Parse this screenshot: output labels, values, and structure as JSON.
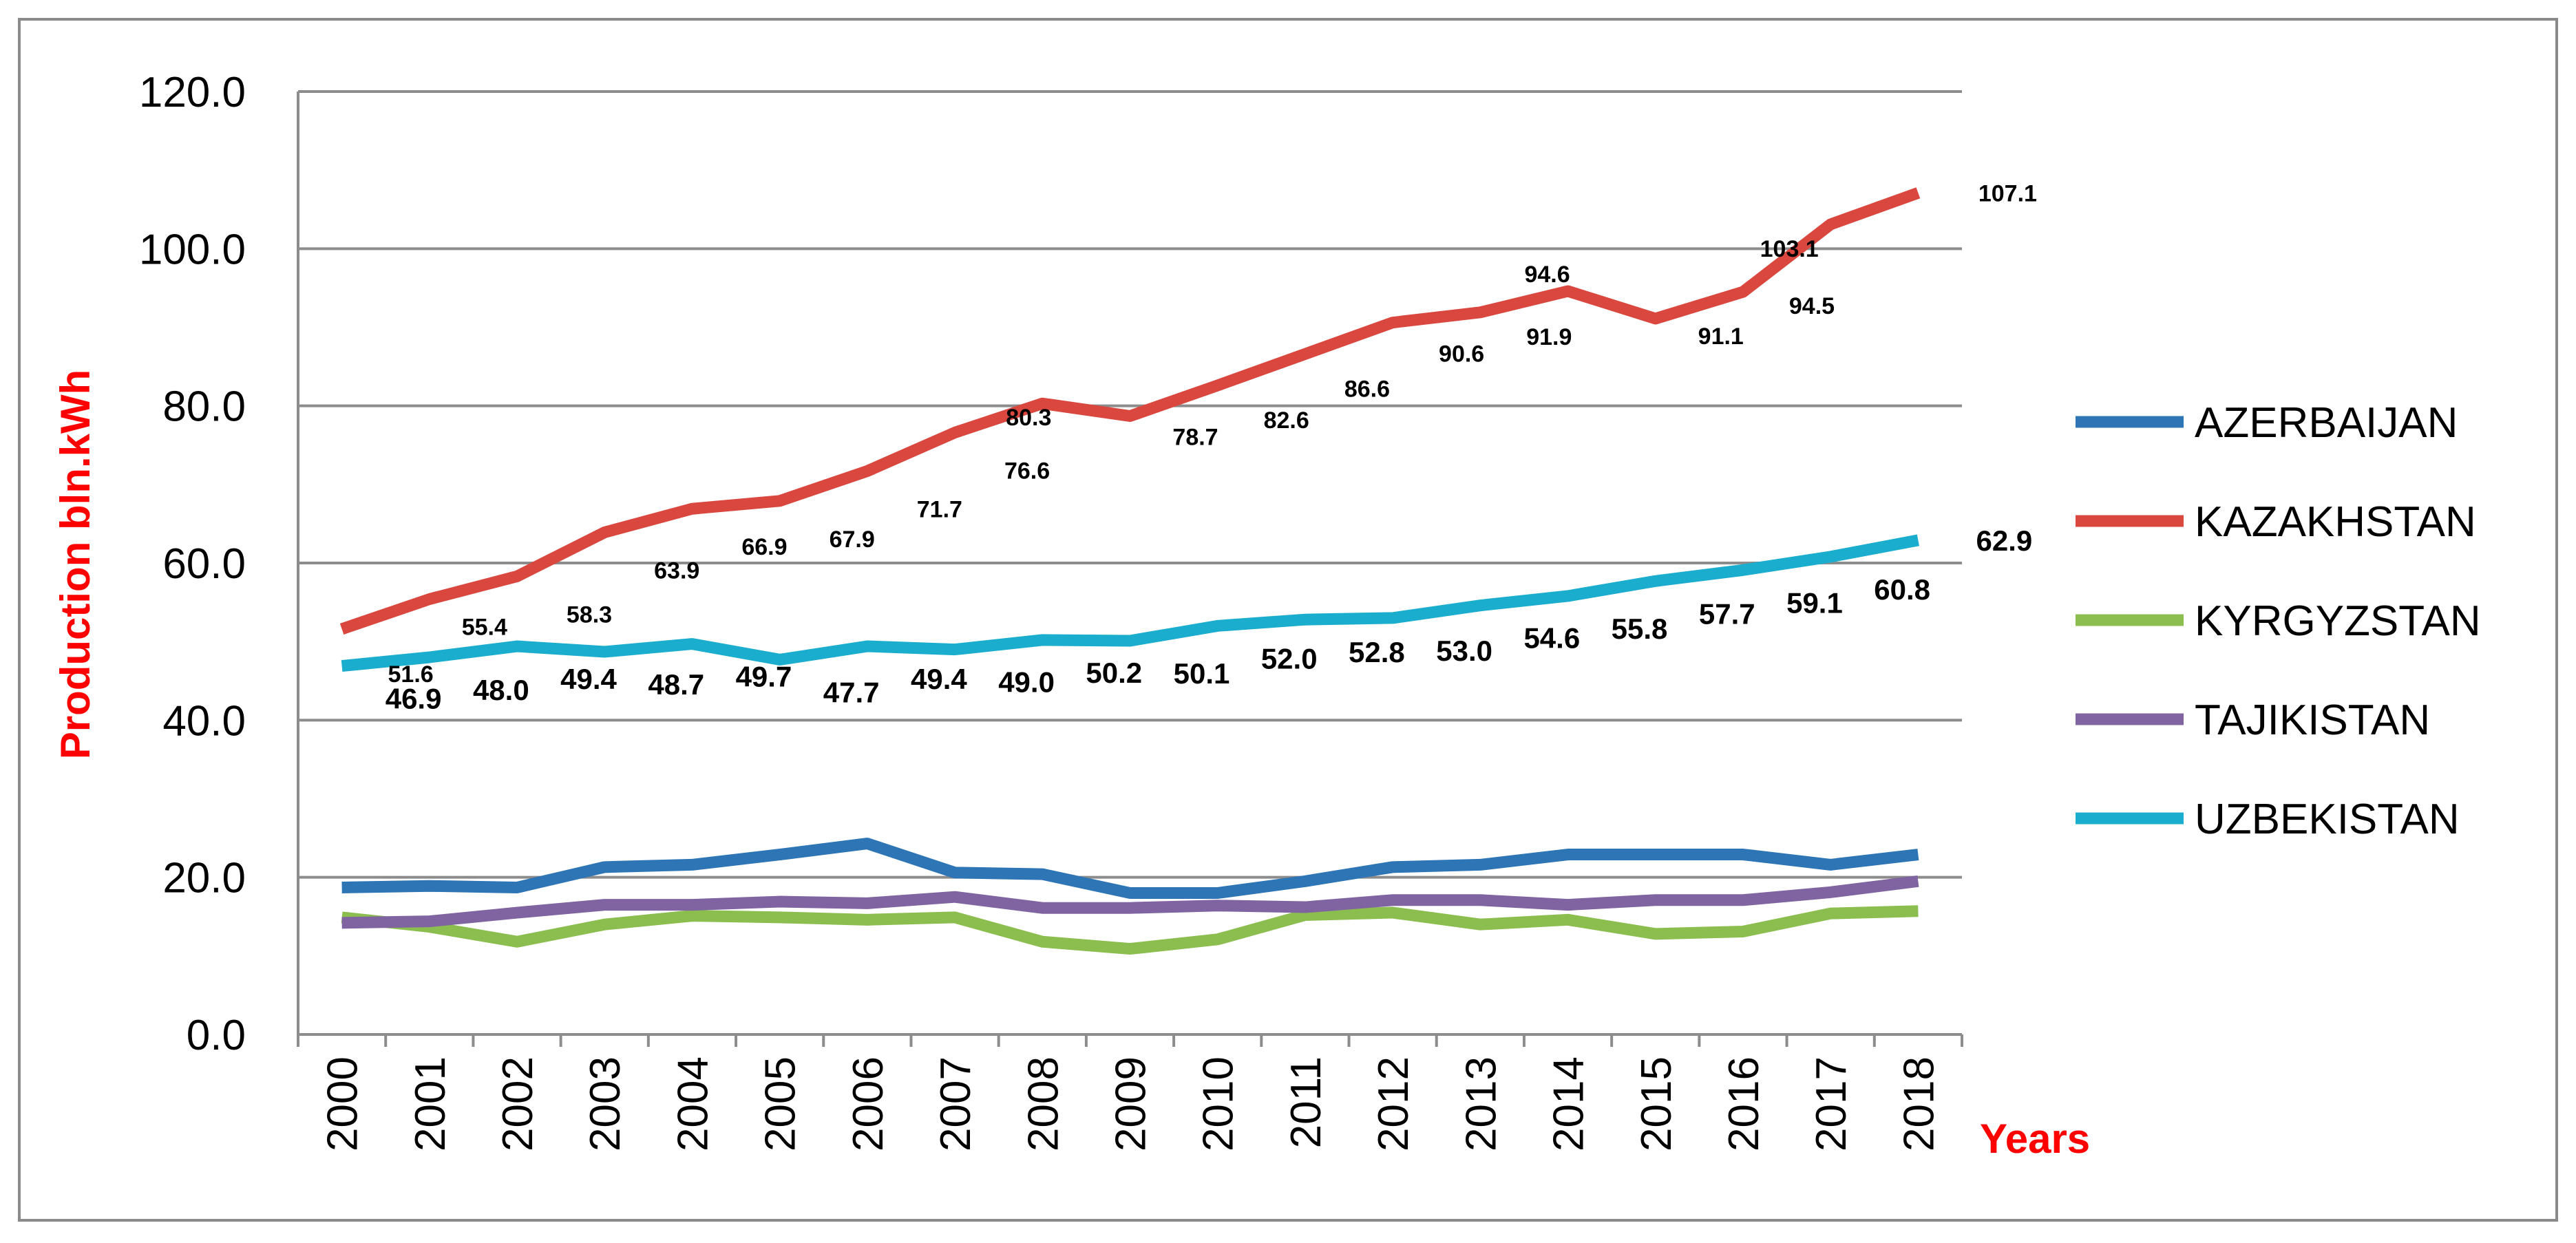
{
  "chart_data": {
    "type": "line",
    "title": "",
    "xlabel": "Years",
    "ylabel": "Production bln.kWh",
    "ylim": [
      0,
      120
    ],
    "y_ticks": [
      "0.0",
      "20.0",
      "40.0",
      "60.0",
      "80.0",
      "100.0",
      "120.0"
    ],
    "y_tick_values": [
      0,
      20,
      40,
      60,
      80,
      100,
      120
    ],
    "grid": true,
    "legend_position": "right",
    "categories": [
      "2000",
      "2001",
      "2002",
      "2003",
      "2004",
      "2005",
      "2006",
      "2007",
      "2008",
      "2009",
      "2010",
      "2011",
      "2012",
      "2013",
      "2014",
      "2015",
      "2016",
      "2017",
      "2018"
    ],
    "series": [
      {
        "name": "AZERBAIJAN",
        "color": "#2E75B6",
        "values": [
          18.7,
          18.9,
          18.7,
          21.3,
          21.6,
          22.9,
          24.3,
          20.6,
          20.4,
          18.0,
          18.0,
          19.5,
          21.3,
          21.6,
          22.9,
          22.9,
          22.9,
          21.6,
          22.9
        ],
        "labels": []
      },
      {
        "name": "KAZAKHSTAN",
        "color": "#D9473F",
        "values": [
          51.6,
          55.4,
          58.3,
          63.9,
          66.9,
          67.9,
          71.7,
          76.6,
          80.3,
          78.7,
          82.6,
          86.6,
          90.6,
          91.9,
          94.6,
          91.1,
          94.5,
          103.1,
          107.1
        ],
        "labels": [
          "51.6",
          "55.4",
          "58.3",
          "63.9",
          "66.9",
          "67.9",
          "71.7",
          "76.6",
          "80.3",
          "78.7",
          "82.6",
          "86.6",
          "90.6",
          "91.9",
          "94.6",
          "91.1",
          "94.5",
          "103.1",
          "107.1"
        ]
      },
      {
        "name": "KYRGYZSTAN",
        "color": "#8CBE4F",
        "values": [
          14.9,
          13.7,
          11.8,
          14.0,
          15.1,
          14.9,
          14.6,
          14.9,
          11.8,
          10.9,
          12.1,
          15.2,
          15.5,
          14.0,
          14.6,
          12.8,
          13.1,
          15.4,
          15.7
        ],
        "labels": []
      },
      {
        "name": "TAJIKISTAN",
        "color": "#8064A2",
        "values": [
          14.2,
          14.4,
          15.5,
          16.5,
          16.5,
          16.9,
          16.7,
          17.5,
          16.1,
          16.1,
          16.4,
          16.2,
          17.1,
          17.1,
          16.5,
          17.1,
          17.1,
          18.1,
          19.5
        ],
        "labels": []
      },
      {
        "name": "UZBEKISTAN",
        "color": "#1AADCD",
        "values": [
          46.9,
          48.0,
          49.4,
          48.7,
          49.7,
          47.7,
          49.4,
          49.0,
          50.2,
          50.1,
          52.0,
          52.8,
          53.0,
          54.6,
          55.8,
          57.7,
          59.1,
          60.8,
          62.9
        ],
        "labels": [
          "46.9",
          "48.0",
          "49.4",
          "48.7",
          "49.7",
          "47.7",
          "49.4",
          "49.0",
          "50.2",
          "50.1",
          "52.0",
          "52.8",
          "53.0",
          "54.6",
          "55.8",
          "57.7",
          "59.1",
          "60.8",
          "62.9"
        ]
      }
    ]
  }
}
